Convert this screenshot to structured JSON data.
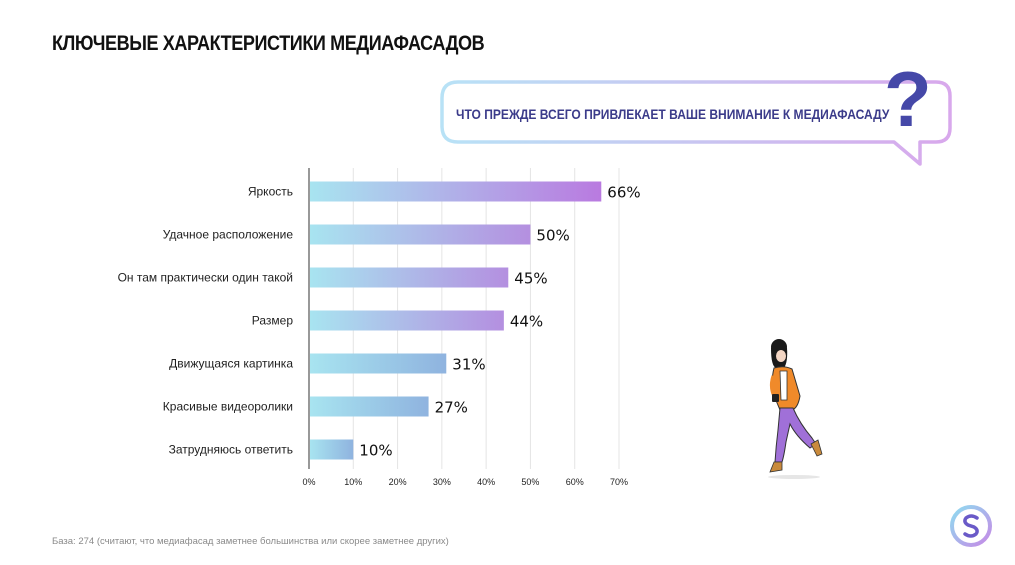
{
  "header": {
    "title": "КЛЮЧЕВЫЕ ХАРАКТЕРИСТИКИ МЕДИАФАСАДОВ"
  },
  "question": {
    "text": "ЧТО ПРЕЖДЕ ВСЕГО ПРИВЛЕКАЕТ ВАШЕ ВНИМАНИЕ К МЕДИАФАСАДУ",
    "mark": "?"
  },
  "footnote": "База: 274 (считают, что медиафасад заметнее большинства или скорее заметнее других)",
  "colors": {
    "bar_start": "#a8e4f0",
    "bar_end_high": "#b97ae0",
    "bar_end_low": "#8fb3df",
    "question_mark": "#4548a8",
    "bubble_border_start": "#b8e2f6",
    "bubble_border_end": "#d8a8ec",
    "grid": "#e4e4e4"
  },
  "chart_data": {
    "type": "bar",
    "orientation": "horizontal",
    "categories": [
      "Яркость",
      "Удачное расположение",
      "Он там практически один такой",
      "Размер",
      "Движущаяся картинка",
      "Красивые видеоролики",
      "Затрудняюсь ответить"
    ],
    "values": [
      66,
      50,
      45,
      44,
      31,
      27,
      10
    ],
    "value_labels": [
      "66%",
      "50%",
      "45%",
      "44%",
      "31%",
      "27%",
      "10%"
    ],
    "xlim": [
      0,
      70
    ],
    "x_ticks": [
      0,
      10,
      20,
      30,
      40,
      50,
      60,
      70
    ],
    "x_tick_labels": [
      "0%",
      "10%",
      "20%",
      "30%",
      "40%",
      "50%",
      "60%",
      "70%"
    ],
    "grid": true,
    "legend": "none"
  }
}
